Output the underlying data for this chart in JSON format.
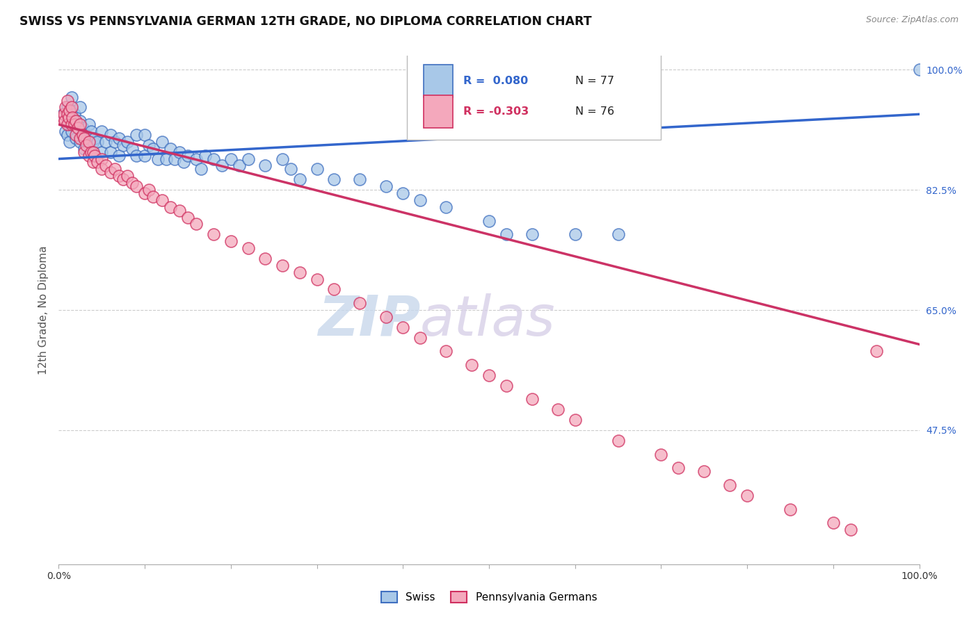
{
  "title": "SWISS VS PENNSYLVANIA GERMAN 12TH GRADE, NO DIPLOMA CORRELATION CHART",
  "source": "Source: ZipAtlas.com",
  "ylabel": "12th Grade, No Diploma",
  "legend_label1": "Swiss",
  "legend_label2": "Pennsylvania Germans",
  "r1_text": "R =  0.080",
  "n1_text": "N = 77",
  "r2_text": "R = -0.303",
  "n2_text": "N = 76",
  "color_blue": "#A8C8E8",
  "color_pink": "#F4A8BC",
  "edge_blue": "#4070C0",
  "edge_pink": "#D03060",
  "line_blue": "#3366CC",
  "line_pink": "#CC3366",
  "watermark_zip": "ZIP",
  "watermark_atlas": "atlas",
  "blue_x": [
    0.005,
    0.008,
    0.01,
    0.01,
    0.012,
    0.013,
    0.015,
    0.015,
    0.015,
    0.018,
    0.02,
    0.02,
    0.022,
    0.025,
    0.025,
    0.025,
    0.028,
    0.03,
    0.03,
    0.032,
    0.035,
    0.035,
    0.038,
    0.04,
    0.04,
    0.042,
    0.045,
    0.05,
    0.05,
    0.055,
    0.06,
    0.06,
    0.065,
    0.07,
    0.07,
    0.075,
    0.08,
    0.085,
    0.09,
    0.09,
    0.1,
    0.1,
    0.105,
    0.11,
    0.115,
    0.12,
    0.125,
    0.13,
    0.135,
    0.14,
    0.145,
    0.15,
    0.16,
    0.165,
    0.17,
    0.18,
    0.19,
    0.2,
    0.21,
    0.22,
    0.24,
    0.26,
    0.27,
    0.28,
    0.3,
    0.32,
    0.35,
    0.38,
    0.4,
    0.42,
    0.45,
    0.5,
    0.52,
    0.55,
    0.6,
    0.65,
    1.0
  ],
  "blue_y": [
    0.935,
    0.91,
    0.945,
    0.905,
    0.92,
    0.895,
    0.96,
    0.94,
    0.91,
    0.935,
    0.92,
    0.9,
    0.92,
    0.945,
    0.925,
    0.895,
    0.915,
    0.905,
    0.885,
    0.895,
    0.92,
    0.89,
    0.91,
    0.895,
    0.875,
    0.9,
    0.895,
    0.91,
    0.88,
    0.895,
    0.905,
    0.88,
    0.895,
    0.9,
    0.875,
    0.89,
    0.895,
    0.885,
    0.905,
    0.875,
    0.905,
    0.875,
    0.89,
    0.885,
    0.87,
    0.895,
    0.87,
    0.885,
    0.87,
    0.88,
    0.865,
    0.875,
    0.87,
    0.855,
    0.875,
    0.87,
    0.86,
    0.87,
    0.86,
    0.87,
    0.86,
    0.87,
    0.855,
    0.84,
    0.855,
    0.84,
    0.84,
    0.83,
    0.82,
    0.81,
    0.8,
    0.78,
    0.76,
    0.76,
    0.76,
    0.76,
    1.0
  ],
  "pink_x": [
    0.005,
    0.006,
    0.007,
    0.008,
    0.01,
    0.01,
    0.01,
    0.012,
    0.013,
    0.015,
    0.015,
    0.016,
    0.018,
    0.02,
    0.02,
    0.022,
    0.025,
    0.025,
    0.028,
    0.03,
    0.03,
    0.032,
    0.035,
    0.035,
    0.038,
    0.04,
    0.04,
    0.042,
    0.045,
    0.05,
    0.05,
    0.055,
    0.06,
    0.065,
    0.07,
    0.075,
    0.08,
    0.085,
    0.09,
    0.1,
    0.105,
    0.11,
    0.12,
    0.13,
    0.14,
    0.15,
    0.16,
    0.18,
    0.2,
    0.22,
    0.24,
    0.26,
    0.28,
    0.3,
    0.32,
    0.35,
    0.38,
    0.4,
    0.42,
    0.45,
    0.48,
    0.5,
    0.52,
    0.55,
    0.58,
    0.6,
    0.65,
    0.7,
    0.72,
    0.75,
    0.78,
    0.8,
    0.85,
    0.9,
    0.92,
    0.95
  ],
  "pink_y": [
    0.93,
    0.935,
    0.925,
    0.945,
    0.955,
    0.935,
    0.92,
    0.93,
    0.94,
    0.945,
    0.92,
    0.93,
    0.92,
    0.925,
    0.905,
    0.915,
    0.92,
    0.9,
    0.905,
    0.9,
    0.88,
    0.89,
    0.895,
    0.875,
    0.88,
    0.88,
    0.865,
    0.875,
    0.865,
    0.87,
    0.855,
    0.86,
    0.85,
    0.855,
    0.845,
    0.84,
    0.845,
    0.835,
    0.83,
    0.82,
    0.825,
    0.815,
    0.81,
    0.8,
    0.795,
    0.785,
    0.775,
    0.76,
    0.75,
    0.74,
    0.725,
    0.715,
    0.705,
    0.695,
    0.68,
    0.66,
    0.64,
    0.625,
    0.61,
    0.59,
    0.57,
    0.555,
    0.54,
    0.52,
    0.505,
    0.49,
    0.46,
    0.44,
    0.42,
    0.415,
    0.395,
    0.38,
    0.36,
    0.34,
    0.33,
    0.59
  ],
  "xlim": [
    0.0,
    1.0
  ],
  "ylim": [
    0.28,
    1.02
  ],
  "blue_line_x": [
    0.0,
    1.0
  ],
  "blue_line_y": [
    0.87,
    0.935
  ],
  "pink_line_x": [
    0.0,
    1.0
  ],
  "pink_line_y": [
    0.92,
    0.6
  ],
  "yticks": [
    1.0,
    0.825,
    0.65,
    0.475
  ],
  "ytick_labels": [
    "100.0%",
    "82.5%",
    "65.0%",
    "47.5%"
  ],
  "xticks": [
    0.0,
    0.1,
    0.2,
    0.3,
    0.4,
    0.5,
    0.6,
    0.7,
    0.8,
    0.9,
    1.0
  ],
  "xtick_labels_show": [
    "0.0%",
    "",
    "",
    "",
    "",
    "",
    "",
    "",
    "",
    "",
    "100.0%"
  ]
}
